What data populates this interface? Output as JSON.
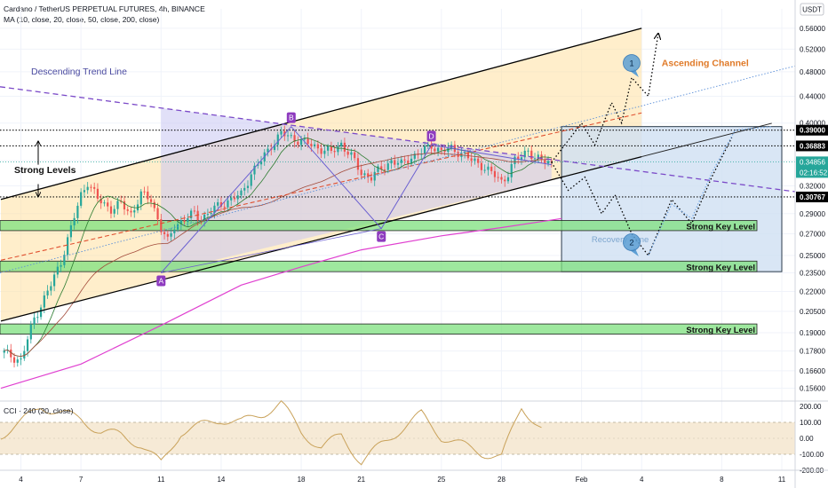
{
  "header": {
    "symbol_line": "Cardano / TetherUS PERPETUAL FUTURES, 4h, BINANCE",
    "ma_line": "MA (10, close, 20, close, 50, close, 200, close)",
    "currency": "USDT"
  },
  "colors": {
    "bull": "#26a69a",
    "bear": "#ef5350",
    "ma10": "#2e7d32",
    "ma20": "#a34b3b",
    "ma200": "#e040d0",
    "zone": "#7ee07e",
    "channel_fill": "#ffe0a0",
    "recovery_fill": "#cfe0f3",
    "triangle_fill": "#c8c6f3",
    "trend": "#7b4ac8",
    "pattern_label": "#8e3bbf",
    "cci": "#c9a25a",
    "cci_band": "#f6ead6",
    "channel_label": "#e07a28",
    "callout": "#5d9fd4"
  },
  "chart_data": [
    {
      "type": "candlestick",
      "scale": "log",
      "ylim": [
        0.15,
        0.6
      ],
      "x_range": [
        "2022-01-03",
        "2022-02-11"
      ],
      "price_ticks": [
        0.56,
        0.52,
        0.48,
        0.44,
        0.4,
        0.35,
        0.32,
        0.29,
        0.27,
        0.25,
        0.235,
        0.22,
        0.205,
        0.19,
        0.178,
        0.166,
        0.156
      ],
      "price_tick_labels": [
        "0.56000",
        "0.52000",
        "0.48000",
        "0.44000",
        "0.40000",
        "0.35000",
        "0.32000",
        "0.29000",
        "0.27000",
        "0.25000",
        "0.23500",
        "0.22000",
        "0.20500",
        "0.19000",
        "0.17800",
        "0.16600",
        "0.15600"
      ],
      "time_ticks": [
        {
          "date": "2022-01-04",
          "label": "4"
        },
        {
          "date": "2022-01-07",
          "label": "7"
        },
        {
          "date": "2022-01-11",
          "label": "11"
        },
        {
          "date": "2022-01-14",
          "label": "14"
        },
        {
          "date": "2022-01-18",
          "label": "18"
        },
        {
          "date": "2022-01-21",
          "label": "21"
        },
        {
          "date": "2022-01-25",
          "label": "25"
        },
        {
          "date": "2022-01-28",
          "label": "28"
        },
        {
          "date": "2022-02-01",
          "label": "Feb"
        },
        {
          "date": "2022-02-04",
          "label": "4"
        },
        {
          "date": "2022-02-08",
          "label": "8"
        },
        {
          "date": "2022-02-11",
          "label": "11"
        }
      ],
      "price_path": [
        [
          "2022-01-03",
          0.178
        ],
        [
          "2022-01-04",
          0.172
        ],
        [
          "2022-01-04T16:00",
          0.2
        ],
        [
          "2022-01-05T12:00",
          0.225
        ],
        [
          "2022-01-06",
          0.245
        ],
        [
          "2022-01-06T12:00",
          0.275
        ],
        [
          "2022-01-07",
          0.31
        ],
        [
          "2022-01-07T08:00",
          0.325
        ],
        [
          "2022-01-07T20:00",
          0.305
        ],
        [
          "2022-01-08T12:00",
          0.295
        ],
        [
          "2022-01-09",
          0.3
        ],
        [
          "2022-01-09T12:00",
          0.29
        ],
        [
          "2022-01-10",
          0.31
        ],
        [
          "2022-01-10T12:00",
          0.305
        ],
        [
          "2022-01-10T20:00",
          0.285
        ],
        [
          "2022-01-11",
          0.275
        ],
        [
          "2022-01-11T08:00",
          0.262
        ],
        [
          "2022-01-11T16:00",
          0.278
        ],
        [
          "2022-01-12",
          0.282
        ],
        [
          "2022-01-12T16:00",
          0.29
        ],
        [
          "2022-01-13",
          0.285
        ],
        [
          "2022-01-13T16:00",
          0.295
        ],
        [
          "2022-01-14",
          0.3
        ],
        [
          "2022-01-14T12:00",
          0.305
        ],
        [
          "2022-01-15",
          0.31
        ],
        [
          "2022-01-15T12:00",
          0.335
        ],
        [
          "2022-01-16",
          0.35
        ],
        [
          "2022-01-16T12:00",
          0.37
        ],
        [
          "2022-01-17",
          0.385
        ],
        [
          "2022-01-17T12:00",
          0.38
        ],
        [
          "2022-01-18",
          0.375
        ],
        [
          "2022-01-18T12:00",
          0.37
        ],
        [
          "2022-01-19",
          0.365
        ],
        [
          "2022-01-19T12:00",
          0.36
        ],
        [
          "2022-01-20",
          0.372
        ],
        [
          "2022-01-20T12:00",
          0.355
        ],
        [
          "2022-01-21",
          0.335
        ],
        [
          "2022-01-21T12:00",
          0.33
        ],
        [
          "2022-01-22",
          0.34
        ],
        [
          "2022-01-22T12:00",
          0.35
        ],
        [
          "2022-01-23",
          0.345
        ],
        [
          "2022-01-23T12:00",
          0.355
        ],
        [
          "2022-01-24",
          0.36
        ],
        [
          "2022-01-24T12:00",
          0.37
        ],
        [
          "2022-01-25",
          0.362
        ],
        [
          "2022-01-25T12:00",
          0.365
        ],
        [
          "2022-01-26",
          0.36
        ],
        [
          "2022-01-26T12:00",
          0.35
        ],
        [
          "2022-01-27",
          0.345
        ],
        [
          "2022-01-27T12:00",
          0.335
        ],
        [
          "2022-01-28",
          0.325
        ],
        [
          "2022-01-28T08:00",
          0.335
        ],
        [
          "2022-01-28T16:00",
          0.35
        ],
        [
          "2022-01-29",
          0.355
        ],
        [
          "2022-01-29T08:00",
          0.365
        ],
        [
          "2022-01-29T16:00",
          0.352
        ],
        [
          "2022-01-30",
          0.35
        ],
        [
          "2022-01-30T12:00",
          0.348
        ]
      ],
      "ma200": [
        [
          "2022-01-03",
          0.156
        ],
        [
          "2022-01-07",
          0.17
        ],
        [
          "2022-01-11",
          0.195
        ],
        [
          "2022-01-15",
          0.225
        ],
        [
          "2022-01-18",
          0.24
        ],
        [
          "2022-01-21",
          0.255
        ],
        [
          "2022-01-25",
          0.268
        ],
        [
          "2022-01-28",
          0.276
        ],
        [
          "2022-01-31",
          0.285
        ]
      ],
      "channel": {
        "upper": [
          [
            "2022-01-03",
            0.305
          ],
          [
            "2022-02-04",
            0.56
          ]
        ],
        "lower": [
          [
            "2022-01-03",
            0.198
          ],
          [
            "2022-02-04",
            0.355
          ]
        ]
      },
      "descending_trend_line": [
        [
          "2021-12-24",
          0.5
        ],
        [
          "2022-02-11",
          0.315
        ]
      ],
      "horizontal_levels": [
        {
          "price": 0.39,
          "label": "0.39000"
        },
        {
          "price": 0.36883,
          "label": "0.36883"
        },
        {
          "price": 0.30767,
          "label": "0.30767"
        }
      ],
      "current_price": {
        "price": 0.34856,
        "label": "0.34856",
        "countdown": "02:16:52"
      },
      "pattern_points": [
        {
          "label": "A",
          "date": "2022-01-11",
          "price": 0.235
        },
        {
          "label": "B",
          "date": "2022-01-17T12:00",
          "price": 0.395
        },
        {
          "label": "C",
          "date": "2022-01-22",
          "price": 0.275
        },
        {
          "label": "D",
          "date": "2022-01-24T12:00",
          "price": 0.37
        }
      ],
      "key_zones": [
        {
          "top": 0.283,
          "bottom": 0.273,
          "label": "Strong Key Level"
        },
        {
          "top": 0.245,
          "bottom": 0.236,
          "label": "Strong Key Level"
        },
        {
          "top": 0.196,
          "bottom": 0.189,
          "label": "Strong Key Level"
        }
      ],
      "recovery_zone": {
        "from": "2022-01-31",
        "to": "2022-02-11",
        "top": 0.395,
        "bottom": 0.236,
        "label": "Recovery Zone"
      },
      "projection_1": [
        [
          "2022-01-30T12:00",
          0.348
        ],
        [
          "2022-02-01",
          0.4
        ],
        [
          "2022-02-01T16:00",
          0.37
        ],
        [
          "2022-02-02T12:00",
          0.43
        ],
        [
          "2022-02-03",
          0.4
        ],
        [
          "2022-02-03T12:00",
          0.47
        ],
        [
          "2022-02-04T08:00",
          0.44
        ],
        [
          "2022-02-04T20:00",
          0.55
        ]
      ],
      "projection_2": [
        [
          "2022-01-30T12:00",
          0.348
        ],
        [
          "2022-01-31T08:00",
          0.315
        ],
        [
          "2022-02-01T04:00",
          0.33
        ],
        [
          "2022-02-02",
          0.29
        ],
        [
          "2022-02-02T16:00",
          0.31
        ],
        [
          "2022-02-03T12:00",
          0.27
        ],
        [
          "2022-02-04T08:00",
          0.25
        ],
        [
          "2022-02-05T12:00",
          0.305
        ],
        [
          "2022-02-06T12:00",
          0.28
        ],
        [
          "2022-02-07T12:00",
          0.33
        ],
        [
          "2022-02-08T12:00",
          0.38
        ]
      ],
      "annotations": {
        "descending": "Descending Trend Line",
        "strong_levels": "Strong Levels",
        "ascending": "Ascending Channel",
        "callout_1": "1",
        "callout_2": "2"
      }
    },
    {
      "type": "line",
      "title": "CCI · 240 (20, close)",
      "ylim": [
        -200,
        200
      ],
      "y_ticks": [
        200,
        100,
        0,
        -100,
        -200
      ],
      "y_tick_labels": [
        "200.00",
        "100.00",
        "0.00",
        "-100.00",
        "-200.00"
      ],
      "band": [
        -100,
        100
      ],
      "x": [
        "2022-01-03",
        "2022-01-04",
        "2022-01-05",
        "2022-01-06",
        "2022-01-07",
        "2022-01-08",
        "2022-01-09",
        "2022-01-10",
        "2022-01-11",
        "2022-01-12",
        "2022-01-13",
        "2022-01-14",
        "2022-01-15",
        "2022-01-16",
        "2022-01-17",
        "2022-01-18",
        "2022-01-19",
        "2022-01-20",
        "2022-01-21",
        "2022-01-22",
        "2022-01-23",
        "2022-01-24",
        "2022-01-25",
        "2022-01-26",
        "2022-01-27",
        "2022-01-28",
        "2022-01-29",
        "2022-01-30"
      ],
      "values": [
        20,
        100,
        200,
        160,
        120,
        40,
        20,
        -40,
        -160,
        40,
        80,
        120,
        100,
        150,
        220,
        40,
        -60,
        20,
        -150,
        -40,
        60,
        150,
        10,
        -40,
        -90,
        -120,
        200,
        60
      ]
    }
  ]
}
